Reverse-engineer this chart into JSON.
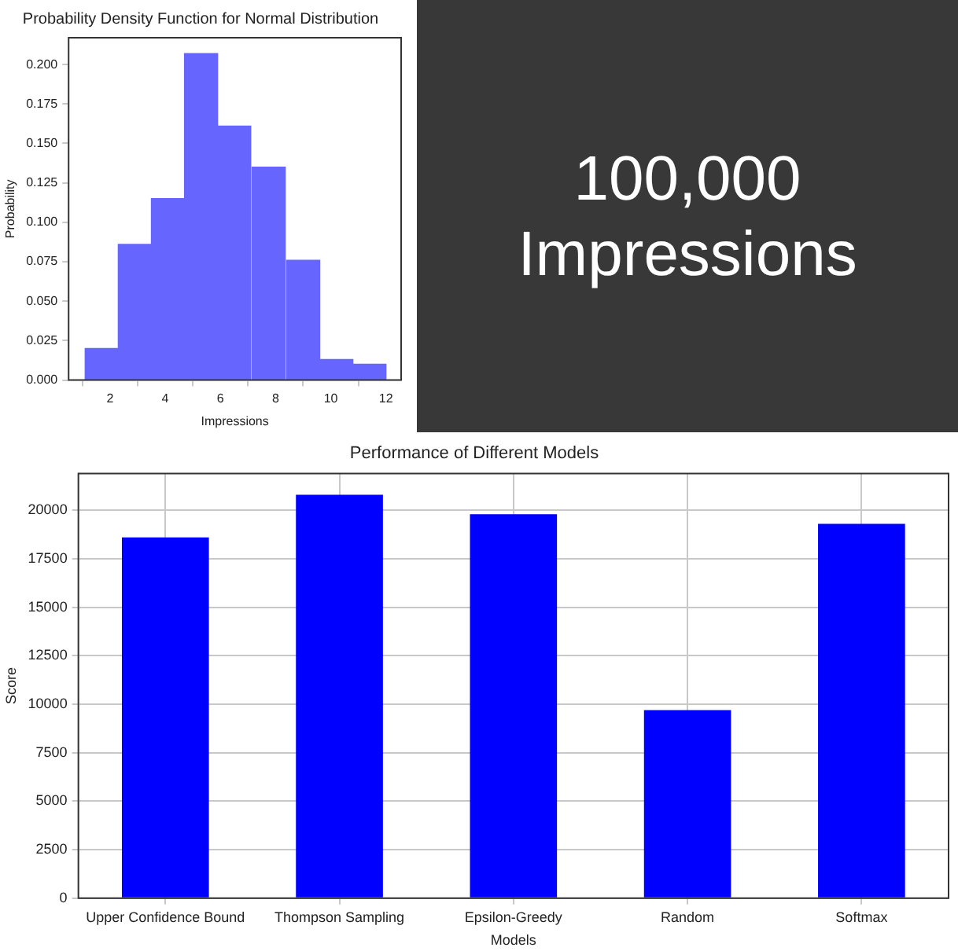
{
  "chart_data": [
    {
      "type": "histogram",
      "title": "Probability Density Function for Normal Distribution",
      "xlabel": "Impressions",
      "ylabel": "Probability",
      "color": "#6666ff",
      "bins": [
        1.1,
        2.3,
        3.5,
        4.7,
        5.9,
        7.1,
        8.4,
        9.6,
        10.8,
        12.0
      ],
      "values": [
        0.02,
        0.086,
        0.115,
        0.207,
        0.161,
        0.135,
        0.076,
        0.013,
        0.01
      ],
      "xlim": [
        0.5,
        12.55
      ],
      "xticks": [
        2,
        4,
        6,
        8,
        10,
        12
      ],
      "ylim": [
        0,
        0.217
      ],
      "yticks": [
        {
          "value": 0,
          "label": "0.000"
        },
        {
          "value": 0.025,
          "label": "0.025"
        },
        {
          "value": 0.05,
          "label": "0.050"
        },
        {
          "value": 0.075,
          "label": "0.075"
        },
        {
          "value": 0.1,
          "label": "0.100"
        },
        {
          "value": 0.125,
          "label": "0.125"
        },
        {
          "value": 0.15,
          "label": "0.150"
        },
        {
          "value": 0.175,
          "label": "0.175"
        },
        {
          "value": 0.2,
          "label": "0.200"
        }
      ],
      "grid": false
    },
    {
      "type": "other",
      "annotations": [
        "100,000",
        "Impressions"
      ]
    },
    {
      "type": "bar",
      "title": "Performance of Different Models",
      "xlabel": "Models",
      "ylabel": "Score",
      "color": "#0000ff",
      "categories": [
        "Upper Confidence Bound",
        "Thompson Sampling",
        "Epsilon-Greedy",
        "Random",
        "Softmax"
      ],
      "values": [
        18600,
        20800,
        19800,
        9700,
        19300
      ],
      "ylim": [
        0,
        21900
      ],
      "yticks": [
        0,
        2500,
        5000,
        7500,
        10000,
        12500,
        15000,
        17500,
        20000
      ],
      "grid": true
    }
  ]
}
